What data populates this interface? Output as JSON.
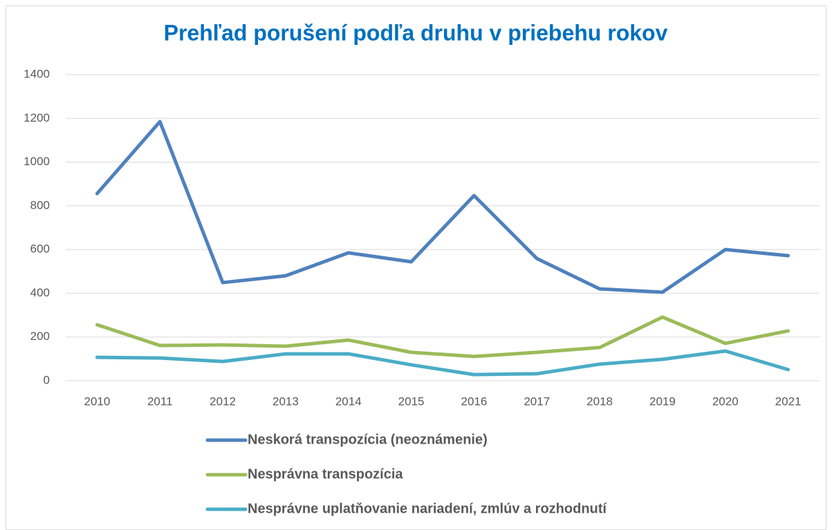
{
  "chart_data": {
    "type": "line",
    "title": "Prehľad porušení podľa druhu v priebehu rokov",
    "categories": [
      "2010",
      "2011",
      "2012",
      "2013",
      "2014",
      "2015",
      "2016",
      "2017",
      "2018",
      "2019",
      "2020",
      "2021"
    ],
    "series": [
      {
        "name": "Neskorá transpozícia (neoznámenie)",
        "color": "#4f81bd",
        "values": [
          856,
          1185,
          449,
          480,
          585,
          544,
          847,
          559,
          420,
          405,
          600,
          572
        ]
      },
      {
        "name": "Nesprávna transpozícia",
        "color": "#9bbb59",
        "values": [
          256,
          161,
          164,
          158,
          186,
          130,
          111,
          130,
          152,
          291,
          171,
          228
        ]
      },
      {
        "name": "Nesprávne uplatňovanie nariadení, zmlúv a rozhodnutí",
        "color": "#4bacc6",
        "values": [
          107,
          104,
          88,
          123,
          123,
          73,
          28,
          32,
          76,
          98,
          136,
          51
        ]
      }
    ],
    "ylim": [
      0,
      1400
    ],
    "yticks": [
      0,
      200,
      400,
      600,
      800,
      1000,
      1200,
      1400
    ],
    "grid": true
  }
}
